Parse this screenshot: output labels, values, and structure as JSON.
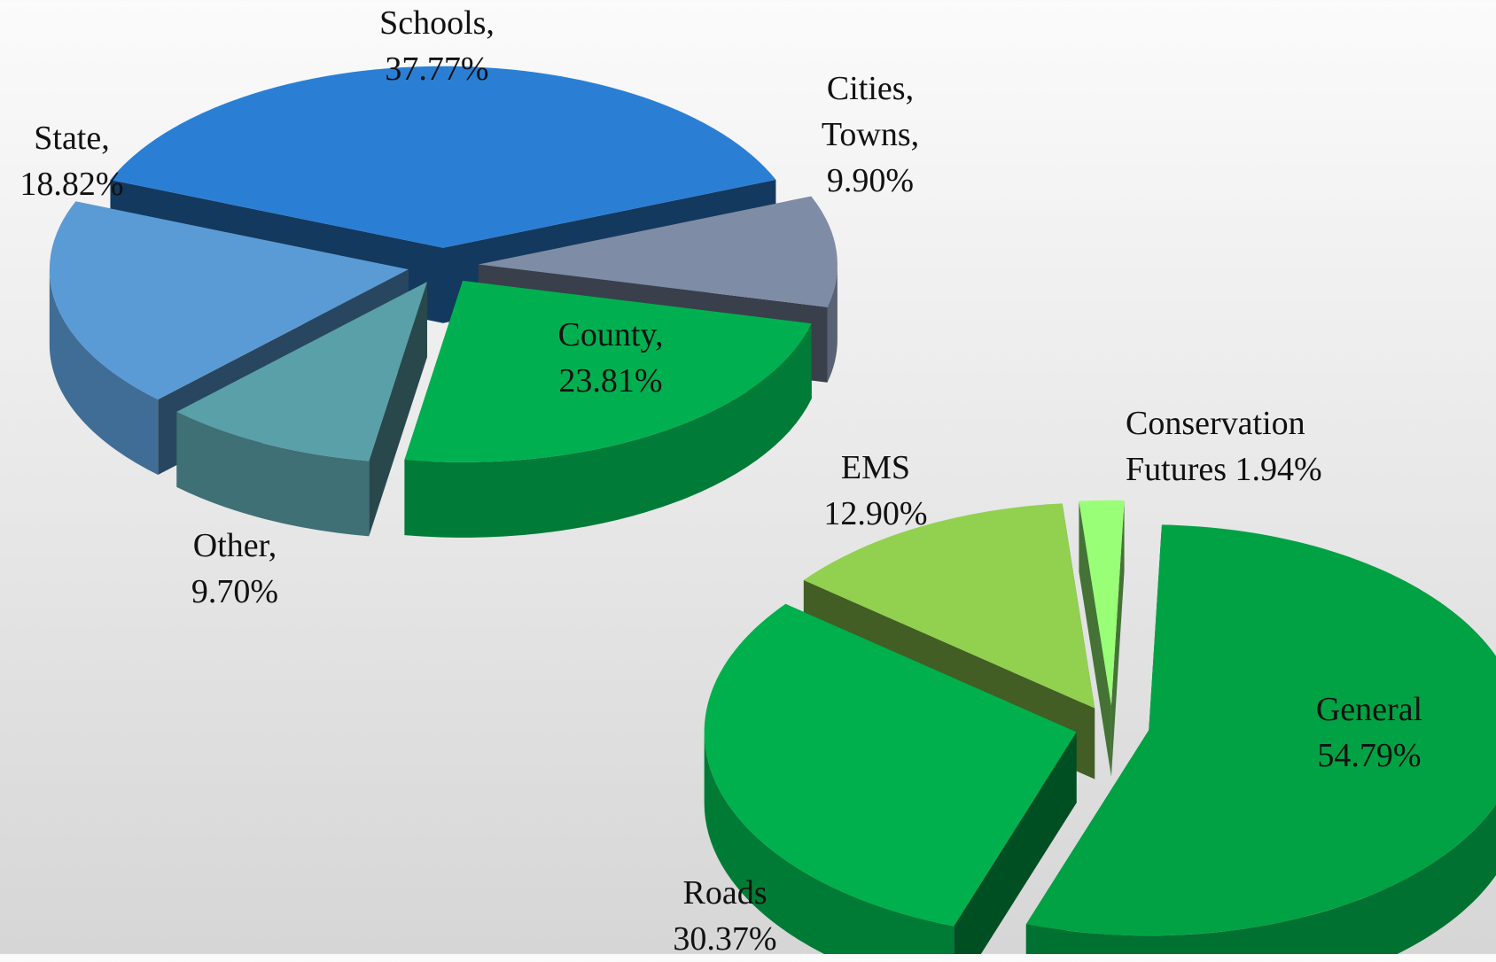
{
  "chart_data": [
    {
      "type": "pie",
      "categories": [
        "Schools,",
        "Cities, Towns,",
        "County,",
        "Other,",
        "State,"
      ],
      "values": [
        37.77,
        9.9,
        23.81,
        9.7,
        18.82
      ],
      "value_labels": [
        "37.77%",
        "9.90%",
        "23.81%",
        "9.70%",
        "18.82%"
      ],
      "colors": [
        "#2a7fd4",
        "#7f8ca6",
        "#00b050",
        "#5aa0a8",
        "#5b9bd5"
      ]
    },
    {
      "type": "pie",
      "categories": [
        "General",
        "Roads",
        "EMS",
        "Conservation Futures"
      ],
      "values": [
        54.79,
        30.37,
        12.9,
        1.94
      ],
      "value_labels": [
        "54.79%",
        "30.37%",
        "12.90%",
        "1.94%"
      ],
      "colors": [
        "#00a244",
        "#00b04c",
        "#92d050",
        "#99ff77"
      ]
    }
  ]
}
